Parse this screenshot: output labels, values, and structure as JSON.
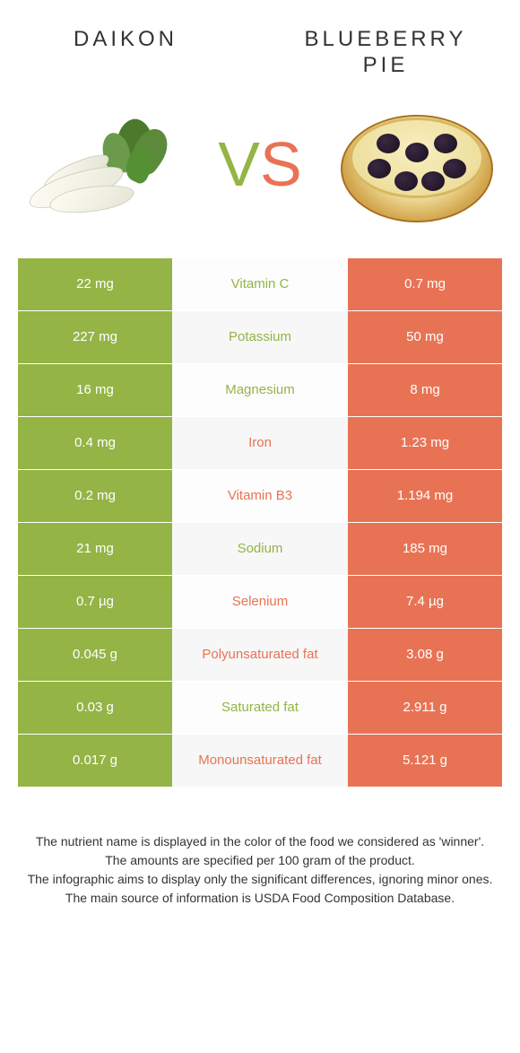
{
  "colors": {
    "left": "#94b446",
    "right": "#e87354",
    "row_alt_mid": "#f7f7f7",
    "text_dark": "#333333"
  },
  "header": {
    "left_title": "DAIKON",
    "right_title": "BLUEBERRY PIE"
  },
  "vs": {
    "v": "V",
    "s": "S"
  },
  "rows": [
    {
      "label": "Vitamin C",
      "left": "22 mg",
      "right": "0.7 mg",
      "winner": "left"
    },
    {
      "label": "Potassium",
      "left": "227 mg",
      "right": "50 mg",
      "winner": "left"
    },
    {
      "label": "Magnesium",
      "left": "16 mg",
      "right": "8 mg",
      "winner": "left"
    },
    {
      "label": "Iron",
      "left": "0.4 mg",
      "right": "1.23 mg",
      "winner": "right"
    },
    {
      "label": "Vitamin B3",
      "left": "0.2 mg",
      "right": "1.194 mg",
      "winner": "right"
    },
    {
      "label": "Sodium",
      "left": "21 mg",
      "right": "185 mg",
      "winner": "left"
    },
    {
      "label": "Selenium",
      "left": "0.7 µg",
      "right": "7.4 µg",
      "winner": "right"
    },
    {
      "label": "Polyunsaturated fat",
      "left": "0.045 g",
      "right": "3.08 g",
      "winner": "right"
    },
    {
      "label": "Saturated fat",
      "left": "0.03 g",
      "right": "2.911 g",
      "winner": "left"
    },
    {
      "label": "Monounsaturated fat",
      "left": "0.017 g",
      "right": "5.121 g",
      "winner": "right"
    }
  ],
  "footnotes": [
    "The nutrient name is displayed in the color of the food we considered as 'winner'.",
    "The amounts are specified per 100 gram of the product.",
    "The infographic aims to display only the significant differences, ignoring minor ones.",
    "The main source of information is USDA Food Composition Database."
  ]
}
